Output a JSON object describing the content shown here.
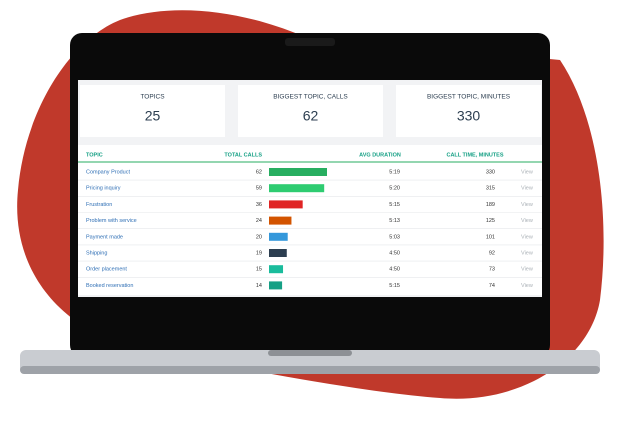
{
  "cards": [
    {
      "label": "TOPICS",
      "value": 25
    },
    {
      "label": "BIGGEST TOPIC, CALLS",
      "value": 62
    },
    {
      "label": "BIGGEST TOPIC, MINUTES",
      "value": 330
    }
  ],
  "table": {
    "columns": [
      "TOPIC",
      "TOTAL CALLS",
      "AVG DURATION",
      "CALL TIME, MINUTES"
    ],
    "rows": [
      {
        "topic": "Company Product",
        "calls": 62,
        "color": "#27ae60",
        "avg": "5:19",
        "minutes": 330,
        "action": "View"
      },
      {
        "topic": "Pricing inquiry",
        "calls": 59,
        "color": "#2ecc71",
        "avg": "5:20",
        "minutes": 315,
        "action": "View"
      },
      {
        "topic": "Frustration",
        "calls": 36,
        "color": "#e02424",
        "avg": "5:15",
        "minutes": 189,
        "action": "View"
      },
      {
        "topic": "Problem with service",
        "calls": 24,
        "color": "#d35400",
        "avg": "5:13",
        "minutes": 125,
        "action": "View"
      },
      {
        "topic": "Payment made",
        "calls": 20,
        "color": "#3498db",
        "avg": "5:03",
        "minutes": 101,
        "action": "View"
      },
      {
        "topic": "Shipping",
        "calls": 19,
        "color": "#2c3e50",
        "avg": "4:50",
        "minutes": 92,
        "action": "View"
      },
      {
        "topic": "Order placement",
        "calls": 15,
        "color": "#1abc9c",
        "avg": "4:50",
        "minutes": 73,
        "action": "View"
      },
      {
        "topic": "Booked reservation",
        "calls": 14,
        "color": "#16a085",
        "avg": "5:15",
        "minutes": 74,
        "action": "View"
      }
    ]
  }
}
